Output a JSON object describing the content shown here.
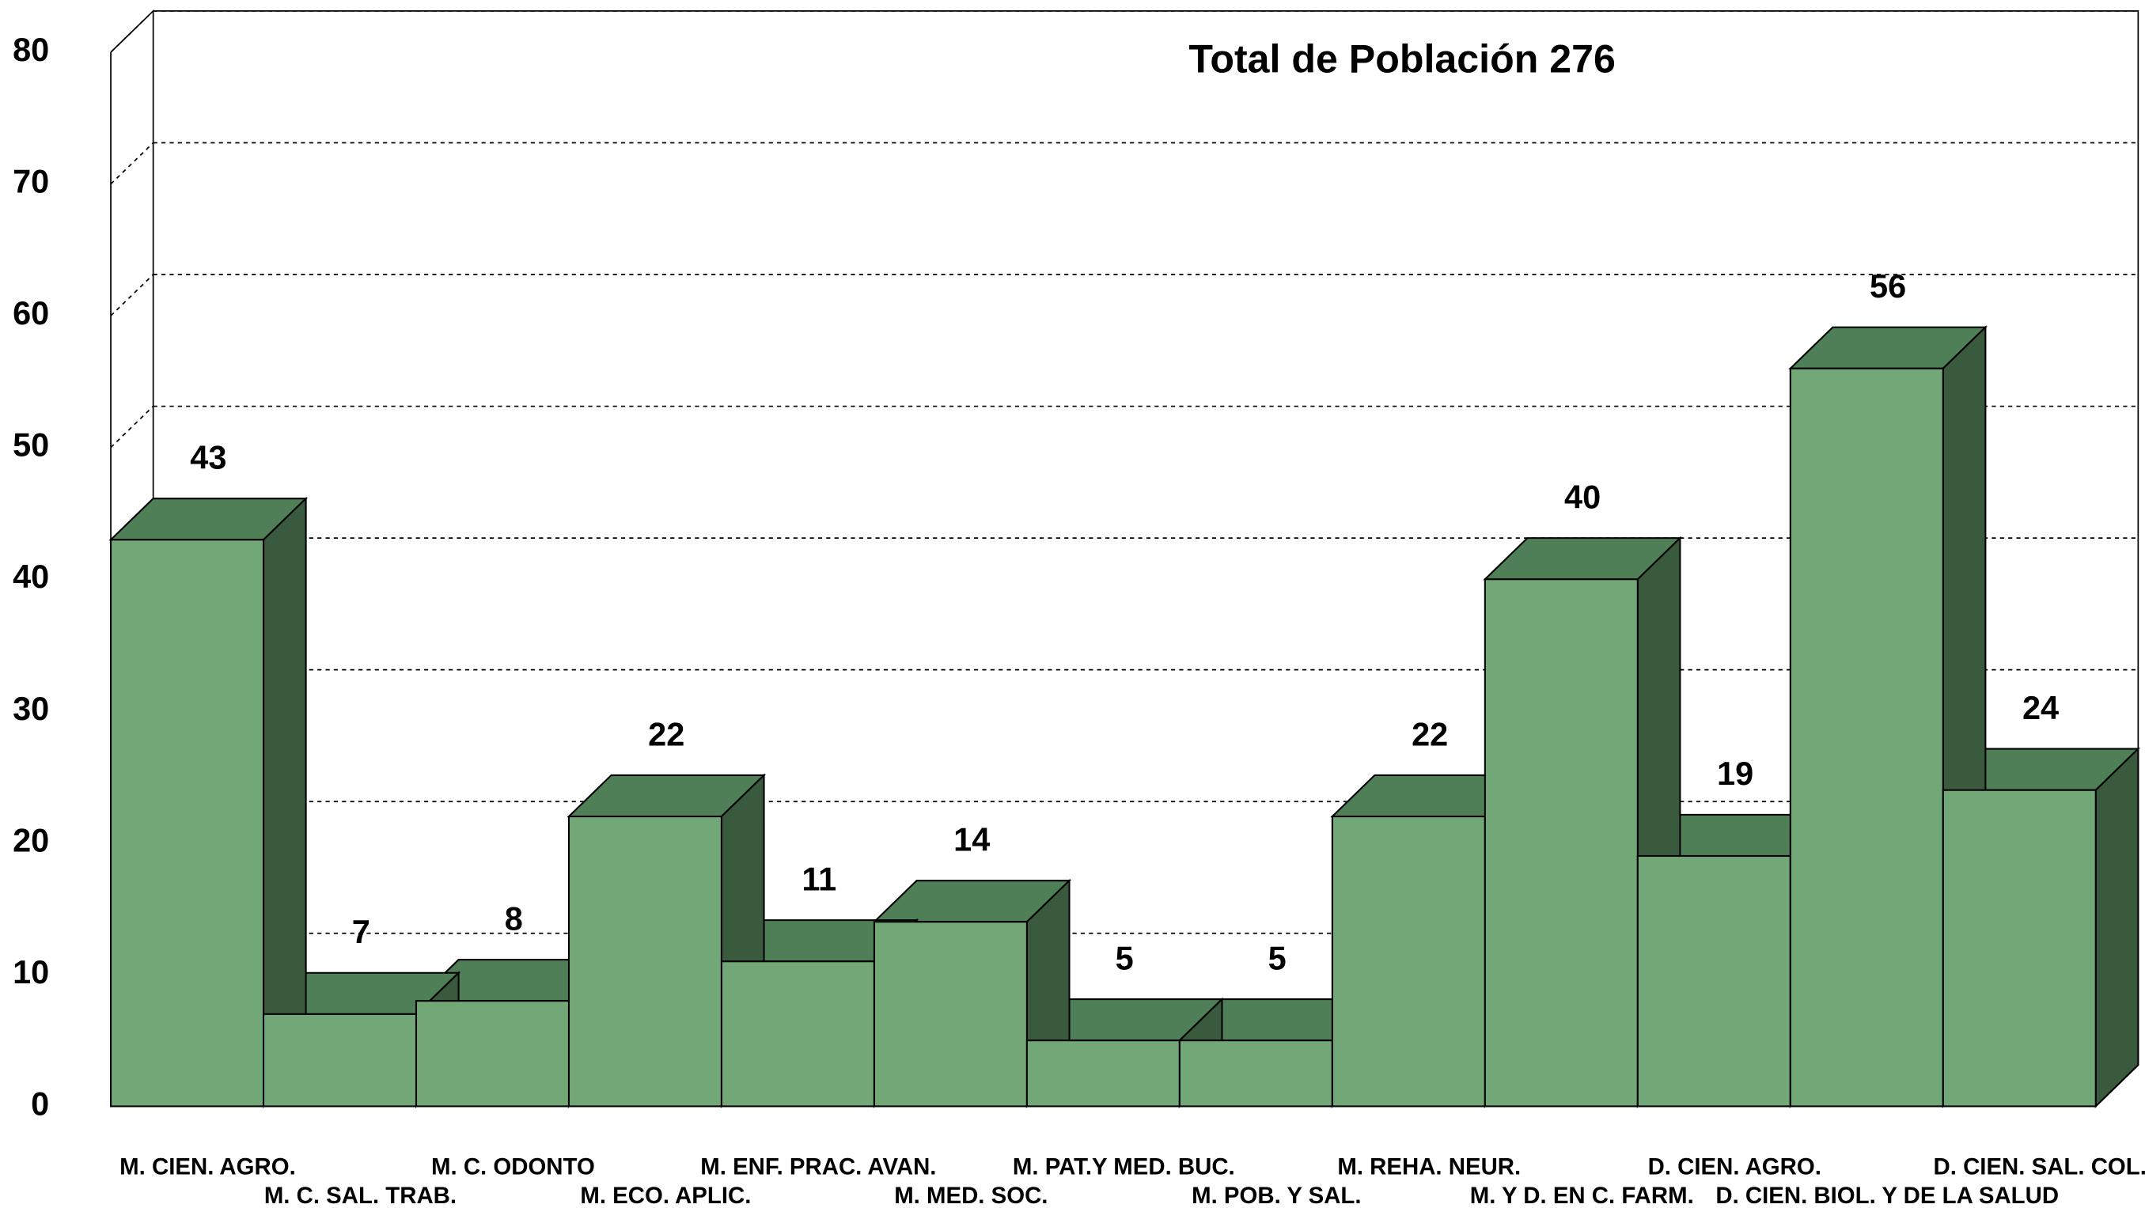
{
  "chart_data": {
    "type": "bar3d",
    "title": "Total de Población 276",
    "categories": [
      "M. CIEN. AGRO.",
      "M. C. SAL. TRAB.",
      "M. C. ODONTO",
      "M. ECO. APLIC.",
      "M. ENF. PRAC. AVAN.",
      "M. MED. SOC.",
      "M. PAT.Y MED. BUC.",
      "M. POB. Y SAL.",
      "M. REHA. NEUR.",
      "M. Y D. EN C. FARM.",
      "D. CIEN. AGRO.",
      "D. CIEN. BIOL. Y DE LA SALUD",
      "D. CIEN. SAL. COL."
    ],
    "values": [
      43,
      7,
      8,
      22,
      11,
      14,
      5,
      5,
      22,
      40,
      19,
      56,
      24
    ],
    "color": "#72a878",
    "ylim": [
      0,
      80
    ],
    "yticks": [
      0,
      10,
      20,
      30,
      40,
      50,
      60,
      70,
      80
    ],
    "grid": true
  }
}
